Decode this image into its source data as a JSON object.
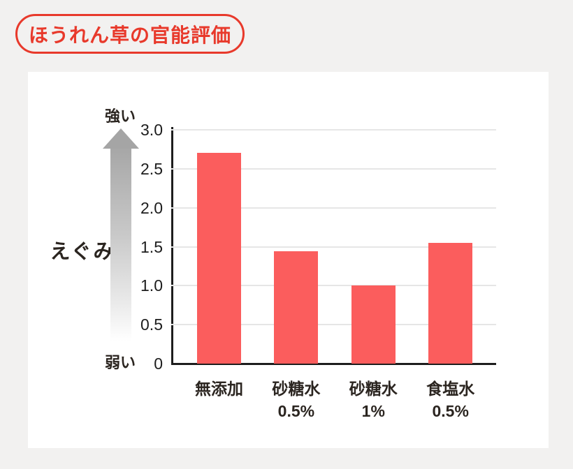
{
  "page": {
    "background_color": "#f2f1f0",
    "card_color": "#ffffff"
  },
  "header": {
    "title": "ほうれん草の官能評価",
    "accent_color": "#e8392b"
  },
  "chart_data": {
    "type": "bar",
    "title": "ほうれん草の官能評価",
    "categories": [
      "無添加",
      "砂糖水 0.5%",
      "砂糖水 1%",
      "食塩水 0.5%"
    ],
    "category_lines": [
      [
        "無添加"
      ],
      [
        "砂糖水",
        "0.5%"
      ],
      [
        "砂糖水",
        "1%"
      ],
      [
        "食塩水",
        "0.5%"
      ]
    ],
    "values": [
      2.7,
      1.44,
      1.0,
      1.55
    ],
    "ylabel": "えぐみ",
    "xlabel": "",
    "y_direction_labels": {
      "top": "強い",
      "bottom": "弱い"
    },
    "yticks": [
      0,
      0.5,
      1.0,
      1.5,
      2.0,
      2.5,
      3.0
    ],
    "ytick_labels": [
      "0",
      "0.5",
      "1.0",
      "1.5",
      "2.0",
      "2.5",
      "3.0"
    ],
    "ylim": [
      0,
      3.0
    ],
    "grid": true,
    "legend": "none",
    "bar_color": "#fb5d5d",
    "gridline_color": "#e6e6e6",
    "axis_color": "#1d1d1d",
    "text_color": "#2b2520"
  }
}
